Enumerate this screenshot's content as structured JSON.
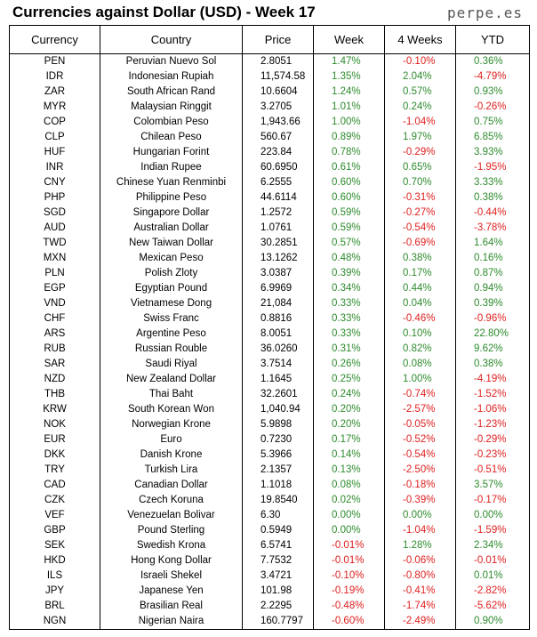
{
  "header": {
    "title": "Currencies against Dollar (USD) - Week 17",
    "brand": "perpe.es"
  },
  "table": {
    "columns": [
      "Currency",
      "Country",
      "Price",
      "Week",
      "4 Weeks",
      "YTD"
    ],
    "rows": [
      [
        "PEN",
        "Peruvian Nuevo Sol",
        "2.8051",
        "1.47%",
        "-0.10%",
        "0.36%"
      ],
      [
        "IDR",
        "Indonesian Rupiah",
        "11,574.58",
        "1.35%",
        "2.04%",
        "-4.79%"
      ],
      [
        "ZAR",
        "South African Rand",
        "10.6604",
        "1.24%",
        "0.57%",
        "0.93%"
      ],
      [
        "MYR",
        "Malaysian Ringgit",
        "3.2705",
        "1.01%",
        "0.24%",
        "-0.26%"
      ],
      [
        "COP",
        "Colombian Peso",
        "1,943.66",
        "1.00%",
        "-1.04%",
        "0.75%"
      ],
      [
        "CLP",
        "Chilean Peso",
        "560.67",
        "0.89%",
        "1.97%",
        "6.85%"
      ],
      [
        "HUF",
        "Hungarian Forint",
        "223.84",
        "0.78%",
        "-0.29%",
        "3.93%"
      ],
      [
        "INR",
        "Indian Rupee",
        "60.6950",
        "0.61%",
        "0.65%",
        "-1.95%"
      ],
      [
        "CNY",
        "Chinese Yuan Renminbi",
        "6.2555",
        "0.60%",
        "0.70%",
        "3.33%"
      ],
      [
        "PHP",
        "Philippine Peso",
        "44.6114",
        "0.60%",
        "-0.31%",
        "0.38%"
      ],
      [
        "SGD",
        "Singapore Dollar",
        "1.2572",
        "0.59%",
        "-0.27%",
        "-0.44%"
      ],
      [
        "AUD",
        "Australian Dollar",
        "1.0761",
        "0.59%",
        "-0.54%",
        "-3.78%"
      ],
      [
        "TWD",
        "New Taiwan Dollar",
        "30.2851",
        "0.57%",
        "-0.69%",
        "1.64%"
      ],
      [
        "MXN",
        "Mexican Peso",
        "13.1262",
        "0.48%",
        "0.38%",
        "0.16%"
      ],
      [
        "PLN",
        "Polish Zloty",
        "3.0387",
        "0.39%",
        "0.17%",
        "0.87%"
      ],
      [
        "EGP",
        "Egyptian Pound",
        "6.9969",
        "0.34%",
        "0.44%",
        "0.94%"
      ],
      [
        "VND",
        "Vietnamese Dong",
        "21,084",
        "0.33%",
        "0.04%",
        "0.39%"
      ],
      [
        "CHF",
        "Swiss Franc",
        "0.8816",
        "0.33%",
        "-0.46%",
        "-0.96%"
      ],
      [
        "ARS",
        "Argentine Peso",
        "8.0051",
        "0.33%",
        "0.10%",
        "22.80%"
      ],
      [
        "RUB",
        "Russian Rouble",
        "36.0260",
        "0.31%",
        "0.82%",
        "9.62%"
      ],
      [
        "SAR",
        "Saudi Riyal",
        "3.7514",
        "0.26%",
        "0.08%",
        "0.38%"
      ],
      [
        "NZD",
        "New Zealand Dollar",
        "1.1645",
        "0.25%",
        "1.00%",
        "-4.19%"
      ],
      [
        "THB",
        "Thai Baht",
        "32.2601",
        "0.24%",
        "-0.74%",
        "-1.52%"
      ],
      [
        "KRW",
        "South Korean Won",
        "1,040.94",
        "0.20%",
        "-2.57%",
        "-1.06%"
      ],
      [
        "NOK",
        "Norwegian Krone",
        "5.9898",
        "0.20%",
        "-0.05%",
        "-1.23%"
      ],
      [
        "EUR",
        "Euro",
        "0.7230",
        "0.17%",
        "-0.52%",
        "-0.29%"
      ],
      [
        "DKK",
        "Danish Krone",
        "5.3966",
        "0.14%",
        "-0.54%",
        "-0.23%"
      ],
      [
        "TRY",
        "Turkish Lira",
        "2.1357",
        "0.13%",
        "-2.50%",
        "-0.51%"
      ],
      [
        "CAD",
        "Canadian Dollar",
        "1.1018",
        "0.08%",
        "-0.18%",
        "3.57%"
      ],
      [
        "CZK",
        "Czech Koruna",
        "19.8540",
        "0.02%",
        "-0.39%",
        "-0.17%"
      ],
      [
        "VEF",
        "Venezuelan Bolivar",
        "6.30",
        "0.00%",
        "0.00%",
        "0.00%"
      ],
      [
        "GBP",
        "Pound Sterling",
        "0.5949",
        "0.00%",
        "-1.04%",
        "-1.59%"
      ],
      [
        "SEK",
        "Swedish Krona",
        "6.5741",
        "-0.01%",
        "1.28%",
        "2.34%"
      ],
      [
        "HKD",
        "Hong Kong Dollar",
        "7.7532",
        "-0.01%",
        "-0.06%",
        "-0.01%"
      ],
      [
        "ILS",
        "Israeli Shekel",
        "3.4721",
        "-0.10%",
        "-0.80%",
        "0.01%"
      ],
      [
        "JPY",
        "Japanese Yen",
        "101.98",
        "-0.19%",
        "-0.41%",
        "-2.82%"
      ],
      [
        "BRL",
        "Brasilian Real",
        "2.2295",
        "-0.48%",
        "-1.74%",
        "-5.62%"
      ],
      [
        "NGN",
        "Nigerian Naira",
        "160.7797",
        "-0.60%",
        "-2.49%",
        "0.90%"
      ]
    ]
  }
}
